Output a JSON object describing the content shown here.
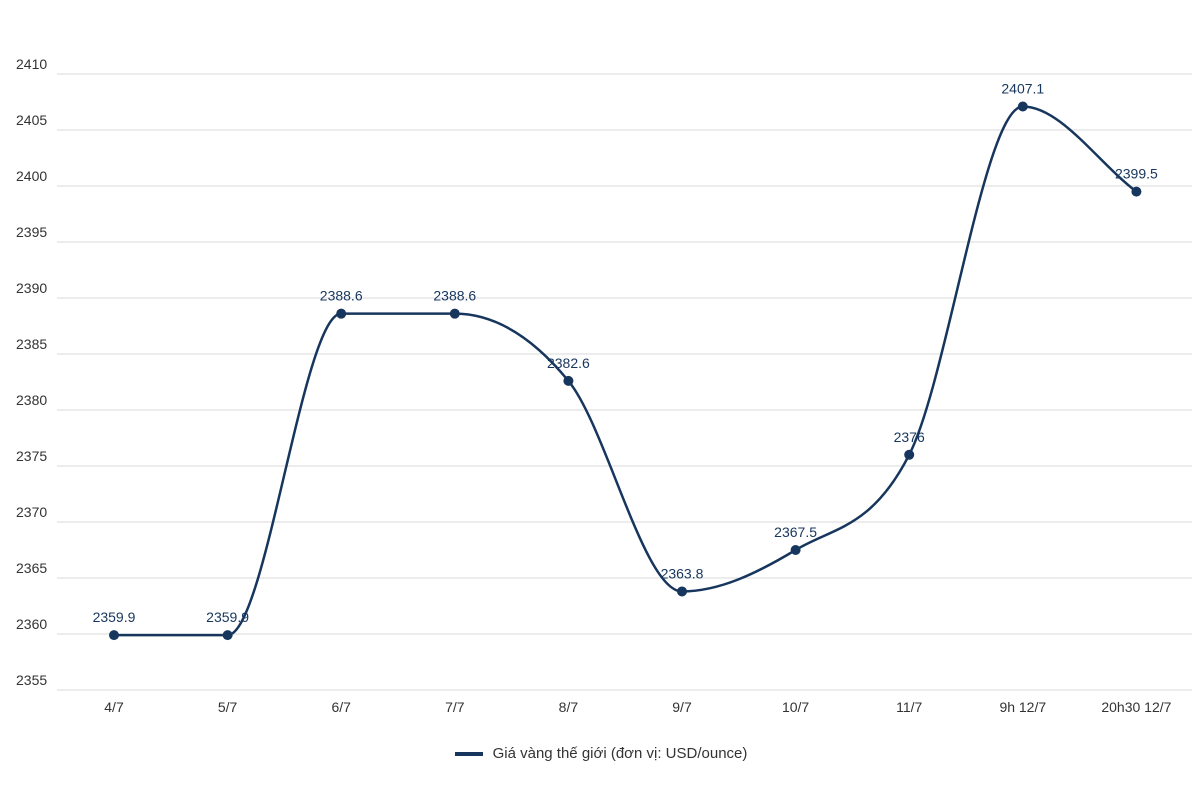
{
  "chart_data": {
    "type": "line",
    "categories": [
      "4/7",
      "5/7",
      "6/7",
      "7/7",
      "8/7",
      "9/7",
      "10/7",
      "11/7",
      "9h 12/7",
      "20h30 12/7"
    ],
    "series": [
      {
        "name": "Giá vàng thế giới (đơn vị: USD/ounce)",
        "values": [
          2359.9,
          2359.9,
          2388.6,
          2388.6,
          2382.6,
          2363.8,
          2367.5,
          2376,
          2407.1,
          2399.5
        ],
        "labels": [
          "2359.9",
          "2359.9",
          "2388.6",
          "2388.6",
          "2382.6",
          "2363.8",
          "2367.5",
          "2376",
          "2407.1",
          "2399.5"
        ],
        "color": "#17365d"
      }
    ],
    "yticks": [
      2355,
      2360,
      2365,
      2370,
      2375,
      2380,
      2385,
      2390,
      2395,
      2400,
      2405,
      2410
    ],
    "ylim": [
      2355,
      2410
    ],
    "grid": true,
    "gridColor": "#d9d9d9",
    "legend_position": "bottom"
  }
}
